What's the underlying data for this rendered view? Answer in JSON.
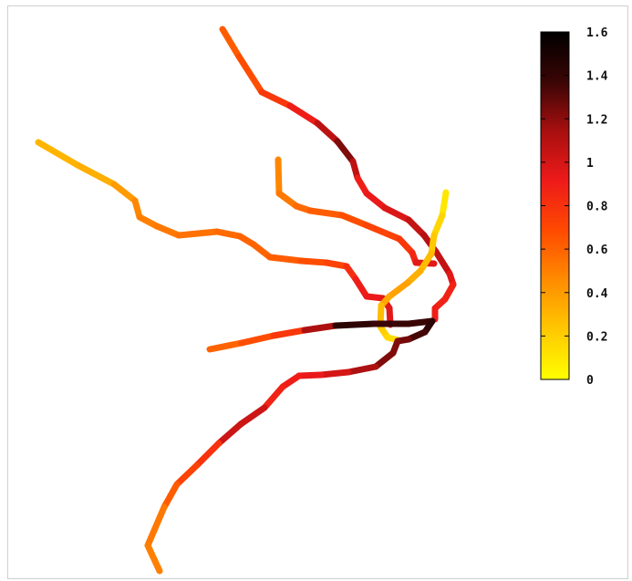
{
  "chart_data": {
    "type": "line",
    "title": "",
    "xlabel": "",
    "ylabel": "",
    "grid": false,
    "colormap": "hot",
    "colorbar": {
      "min": 0,
      "max": 1.6,
      "ticks": [
        0,
        0.2,
        0.4,
        0.6,
        0.8,
        1,
        1.2,
        1.4,
        1.6
      ],
      "tick_labels": [
        "0",
        "0.2",
        "0.4",
        "0.6",
        "0.8",
        "1",
        "1.2",
        "1.4",
        "1.6"
      ],
      "stops": [
        "#ffff00",
        "#ffc800",
        "#ff8c00",
        "#ff4a00",
        "#ee1a1a",
        "#a80f0f",
        "#3a0505",
        "#000000"
      ]
    },
    "series": [
      {
        "points": [
          [
            244,
            32,
            0.6
          ],
          [
            262,
            62,
            0.65
          ],
          [
            287,
            101,
            0.7
          ],
          [
            318,
            116,
            0.85
          ],
          [
            348,
            135,
            0.95
          ],
          [
            370,
            155,
            1.2
          ],
          [
            387,
            177,
            1.25
          ],
          [
            392,
            195,
            0.9
          ],
          [
            402,
            212,
            0.9
          ],
          [
            422,
            228,
            0.95
          ],
          [
            448,
            241,
            1.0
          ],
          [
            465,
            258,
            1.1
          ],
          [
            478,
            276,
            1.1
          ],
          [
            493,
            300,
            1.0
          ],
          [
            497,
            312,
            0.9
          ],
          [
            488,
            328,
            0.85
          ],
          [
            477,
            338,
            0.9
          ],
          [
            477,
            350,
            0.9
          ]
        ]
      },
      {
        "points": [
          [
            42,
            156,
            0.3
          ],
          [
            85,
            181,
            0.3
          ],
          [
            125,
            202,
            0.35
          ],
          [
            148,
            220,
            0.45
          ],
          [
            153,
            238,
            0.5
          ],
          [
            172,
            248,
            0.5
          ],
          [
            196,
            258,
            0.55
          ],
          [
            238,
            254,
            0.55
          ],
          [
            263,
            259,
            0.6
          ],
          [
            278,
            268,
            0.6
          ],
          [
            296,
            282,
            0.6
          ],
          [
            330,
            286,
            0.65
          ],
          [
            358,
            288,
            0.7
          ],
          [
            380,
            292,
            0.75
          ],
          [
            390,
            306,
            0.9
          ],
          [
            402,
            325,
            0.9
          ],
          [
            420,
            327,
            0.95
          ],
          [
            427,
            338,
            0.95
          ],
          [
            428,
            356,
            0.95
          ]
        ]
      },
      {
        "points": [
          [
            305,
            175,
            0.45
          ],
          [
            306,
            212,
            0.5
          ],
          [
            325,
            226,
            0.55
          ],
          [
            340,
            231,
            0.6
          ],
          [
            375,
            236,
            0.65
          ],
          [
            402,
            247,
            0.7
          ],
          [
            438,
            262,
            0.75
          ],
          [
            452,
            277,
            0.8
          ],
          [
            456,
            288,
            0.9
          ],
          [
            476,
            289,
            1.0
          ]
        ]
      },
      {
        "points": [
          [
            489,
            211,
            0.05
          ],
          [
            485,
            236,
            0.15
          ],
          [
            476,
            258,
            0.2
          ],
          [
            473,
            278,
            0.25
          ],
          [
            461,
            297,
            0.3
          ],
          [
            447,
            310,
            0.35
          ],
          [
            427,
            325,
            0.4
          ],
          [
            418,
            335,
            0.3
          ],
          [
            417,
            358,
            0.25
          ],
          [
            425,
            370,
            0.15
          ],
          [
            437,
            373,
            0.15
          ]
        ]
      },
      {
        "points": [
          [
            230,
            383,
            0.55
          ],
          [
            265,
            376,
            0.65
          ],
          [
            300,
            368,
            0.7
          ],
          [
            334,
            362,
            0.85
          ],
          [
            368,
            357,
            1.4
          ],
          [
            410,
            355,
            1.45
          ],
          [
            448,
            355,
            1.3
          ],
          [
            474,
            352,
            1.45
          ],
          [
            466,
            364,
            1.4
          ],
          [
            448,
            372,
            1.3
          ],
          [
            436,
            374,
            1.2
          ],
          [
            431,
            387,
            1.25
          ],
          [
            412,
            402,
            1.2
          ],
          [
            382,
            408,
            1.05
          ],
          [
            352,
            411,
            0.95
          ],
          [
            328,
            412,
            0.9
          ],
          [
            310,
            424,
            0.9
          ],
          [
            290,
            447,
            0.85
          ],
          [
            264,
            465,
            1.2
          ],
          [
            240,
            486,
            0.85
          ],
          [
            216,
            510,
            0.75
          ],
          [
            194,
            531,
            0.7
          ],
          [
            180,
            556,
            0.55
          ],
          [
            162,
            598,
            0.5
          ],
          [
            175,
            626,
            0.5
          ]
        ]
      }
    ]
  }
}
